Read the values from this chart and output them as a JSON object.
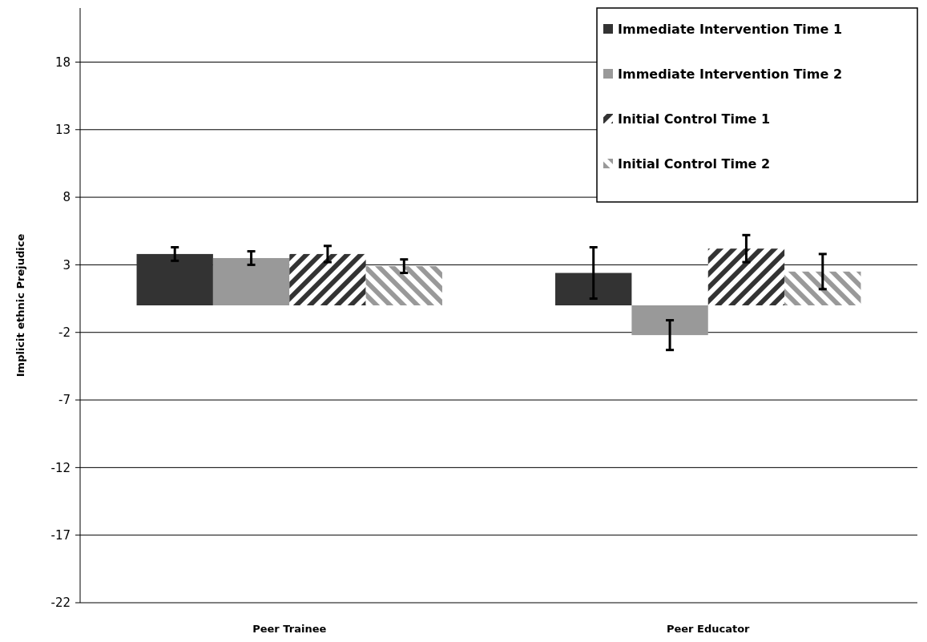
{
  "chart_data": {
    "type": "bar",
    "ylabel": "Implicit ethnic Prejudice",
    "categories": [
      "Peer Trainee",
      "Peer Educator"
    ],
    "series": [
      {
        "name": "Immediate Intervention Time 1",
        "color": "#333333",
        "values": [
          3.8,
          2.4
        ],
        "errors": [
          0.5,
          1.9
        ]
      },
      {
        "name": "Immediate Intervention Time 2",
        "color": "#999999",
        "values": [
          3.5,
          -2.2
        ],
        "errors": [
          0.5,
          1.1
        ]
      },
      {
        "name": "Initial Control Time 1",
        "color": "#333333",
        "values": [
          3.8,
          4.2
        ],
        "errors": [
          0.6,
          1.0
        ]
      },
      {
        "name": "Initial Control Time 2",
        "color": "#999999",
        "values": [
          2.9,
          2.5
        ],
        "errors": [
          0.5,
          1.3
        ]
      }
    ],
    "ylim": [
      -22,
      22
    ],
    "yticks": [
      -22,
      -17,
      -12,
      -7,
      -2,
      3,
      8,
      13,
      18
    ],
    "grid": "y",
    "legend": "top right"
  }
}
